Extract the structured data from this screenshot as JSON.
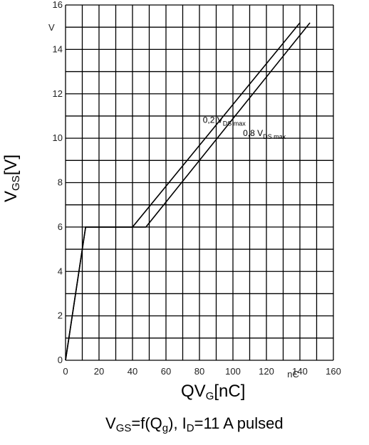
{
  "chart_data": {
    "type": "line",
    "x_ticks": [
      "0",
      "20",
      "40",
      "60",
      "80",
      "100",
      "120",
      "140",
      "160"
    ],
    "x_unit": "nC",
    "y_ticks": [
      "0",
      "2",
      "4",
      "6",
      "8",
      "10",
      "12",
      "14",
      "16"
    ],
    "y_unit": "V",
    "xlim": [
      0,
      160
    ],
    "ylim": [
      0,
      16
    ],
    "grid": true,
    "xlabel": {
      "main": "QV",
      "sub": "G",
      "suffix": "[nC]"
    },
    "ylabel": {
      "main": "V",
      "sub": "GS",
      "suffix": "[V]"
    },
    "caption": {
      "p1": "V",
      "s1": "GS",
      "p2": "=f(Q",
      "s2": "g",
      "p3": "), I",
      "s3": "D",
      "p4": "=11 A  pulsed"
    },
    "series": [
      {
        "name": "0,2 V DS max",
        "label_main": "0,2 V",
        "label_sub": "DS max",
        "points": [
          [
            0,
            0
          ],
          [
            12,
            6
          ],
          [
            40,
            6
          ],
          [
            140,
            15.2
          ]
        ]
      },
      {
        "name": "0,8 V DS max",
        "label_main": "0,8 V",
        "label_sub": "DS max",
        "points": [
          [
            0,
            0
          ],
          [
            12,
            6
          ],
          [
            48,
            6
          ],
          [
            146,
            15.2
          ]
        ]
      }
    ]
  }
}
